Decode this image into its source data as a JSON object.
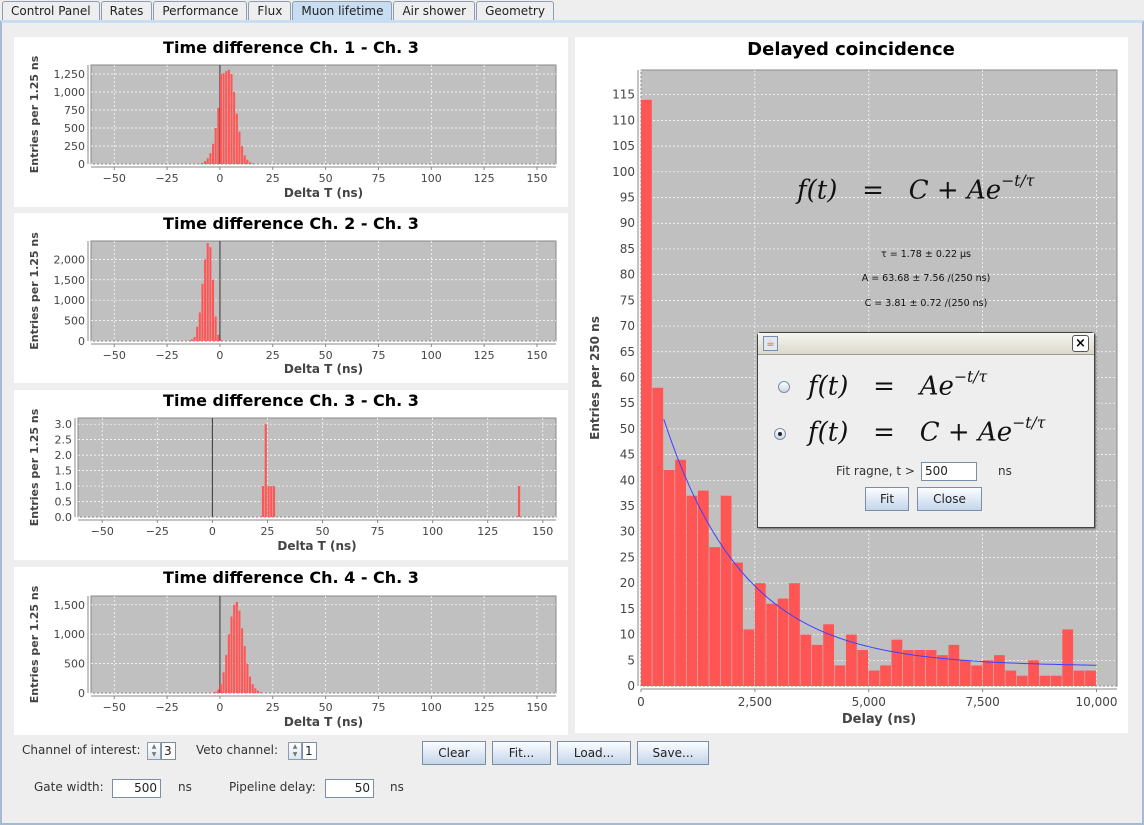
{
  "tabs": [
    "Control Panel",
    "Rates",
    "Performance",
    "Flux",
    "Muon lifetime",
    "Air shower",
    "Geometry"
  ],
  "active_tab": "Muon lifetime",
  "colors": {
    "bar": "#ff5555",
    "plot_bg": "#c0c0c0",
    "fit_line": "#4040ff",
    "grid": "#ffffff"
  },
  "chart_data": [
    {
      "type": "bar",
      "title": "Time difference Ch. 1 - Ch. 3",
      "xlabel": "Delta T (ns)",
      "ylabel": "Entries per 1.25 ns",
      "bin_width": 1.25,
      "xlim": [
        -61,
        159
      ],
      "xticks": [
        -50,
        -25,
        0,
        25,
        50,
        75,
        100,
        125,
        150
      ],
      "xticklabels": [
        "−50",
        "−25",
        "0",
        "25",
        "50",
        "75",
        "100",
        "125",
        "150"
      ],
      "ylim": [
        0,
        1375
      ],
      "yticks": [
        0,
        250,
        500,
        750,
        1000,
        1250
      ],
      "yticklabels": [
        "0",
        "250",
        "500",
        "750",
        "1,000",
        "1,250"
      ],
      "x": [
        -10,
        -8.75,
        -7.5,
        -6.25,
        -5,
        -3.75,
        -2.5,
        -1.25,
        0,
        1.25,
        2.5,
        3.75,
        5,
        6.25,
        7.5,
        8.75,
        10,
        11.25,
        12.5,
        13.75,
        15
      ],
      "values": [
        5,
        15,
        40,
        80,
        150,
        280,
        500,
        780,
        1250,
        1260,
        1290,
        1310,
        1250,
        1000,
        700,
        450,
        250,
        120,
        60,
        25,
        10
      ]
    },
    {
      "type": "bar",
      "title": "Time difference Ch. 2 - Ch. 3",
      "xlabel": "Delta T (ns)",
      "ylabel": "Entries per 1.25 ns",
      "bin_width": 1.25,
      "xlim": [
        -61,
        159
      ],
      "xticks": [
        -50,
        -25,
        0,
        25,
        50,
        75,
        100,
        125,
        150
      ],
      "xticklabels": [
        "−50",
        "−25",
        "0",
        "25",
        "50",
        "75",
        "100",
        "125",
        "150"
      ],
      "ylim": [
        0,
        2450
      ],
      "yticks": [
        0,
        500,
        1000,
        1500,
        2000
      ],
      "yticklabels": [
        "0",
        "500",
        "1,000",
        "1,500",
        "2,000"
      ],
      "x": [
        -15,
        -13.75,
        -12.5,
        -11.25,
        -10,
        -8.75,
        -7.5,
        -6.25,
        -5,
        -3.75,
        -2.5,
        -1.25,
        0
      ],
      "values": [
        10,
        40,
        100,
        350,
        700,
        1400,
        2000,
        2400,
        2300,
        1500,
        600,
        150,
        30
      ]
    },
    {
      "type": "bar",
      "title": "Time difference Ch. 3 - Ch. 3",
      "xlabel": "Delta T (ns)",
      "ylabel": "Entries per 1.25 ns",
      "bin_width": 1.25,
      "xlim": [
        -61,
        156
      ],
      "xticks": [
        -50,
        -25,
        0,
        25,
        50,
        75,
        100,
        125,
        150
      ],
      "xticklabels": [
        "−50",
        "−25",
        "0",
        "25",
        "50",
        "75",
        "100",
        "125",
        "150"
      ],
      "ylim": [
        0,
        3.2
      ],
      "yticks": [
        0,
        0.5,
        1,
        1.5,
        2,
        2.5,
        3
      ],
      "yticklabels": [
        "0.0",
        "0.5",
        "1.0",
        "1.5",
        "2.0",
        "2.5",
        "3.0"
      ],
      "x": [
        22.5,
        23.75,
        25,
        26.25,
        27.5,
        138.75
      ],
      "values": [
        1,
        3,
        1,
        1,
        1,
        1
      ]
    },
    {
      "type": "bar",
      "title": "Time difference Ch. 4 - Ch. 3",
      "xlabel": "Delta T (ns)",
      "ylabel": "Entries per 1.25 ns",
      "bin_width": 1.25,
      "xlim": [
        -61,
        159
      ],
      "xticks": [
        -50,
        -25,
        0,
        25,
        50,
        75,
        100,
        125,
        150
      ],
      "xticklabels": [
        "−50",
        "−25",
        "0",
        "25",
        "50",
        "75",
        "100",
        "125",
        "150"
      ],
      "ylim": [
        0,
        1650
      ],
      "yticks": [
        0,
        500,
        1000,
        1500
      ],
      "yticklabels": [
        "0",
        "500",
        "1,000",
        "1,500"
      ],
      "x": [
        -2.5,
        -1.25,
        0,
        1.25,
        2.5,
        3.75,
        5,
        6.25,
        7.5,
        8.75,
        10,
        11.25,
        12.5,
        13.75,
        15,
        16.25,
        17.5,
        18.75
      ],
      "values": [
        20,
        60,
        150,
        350,
        650,
        1000,
        1300,
        1500,
        1550,
        1400,
        1100,
        800,
        500,
        280,
        150,
        80,
        40,
        15
      ]
    },
    {
      "type": "bar",
      "title": "Delayed coincidence",
      "xlabel": "Delay  (ns)",
      "ylabel": "Entries per 250 ns",
      "bin_width": 250,
      "xlim": [
        0,
        10450
      ],
      "xticks": [
        0,
        2500,
        5000,
        7500,
        10000
      ],
      "xticklabels": [
        "0",
        "2,500",
        "5,000",
        "7,500",
        "10,000"
      ],
      "ylim": [
        0,
        119.8
      ],
      "yticks": [
        0,
        5,
        10,
        15,
        20,
        25,
        30,
        35,
        40,
        45,
        50,
        55,
        60,
        65,
        70,
        75,
        80,
        85,
        90,
        95,
        100,
        105,
        110,
        115
      ],
      "values": [
        114,
        58,
        42,
        44,
        37,
        38,
        27,
        37,
        24,
        11,
        20,
        16,
        17,
        20,
        10,
        8,
        12,
        4,
        10,
        7,
        3,
        4,
        9,
        7,
        7,
        7,
        6,
        8,
        5,
        4,
        5,
        6,
        3,
        2,
        5,
        2,
        2,
        11,
        3,
        3
      ],
      "fit": {
        "C": 3.81,
        "A": 63.68,
        "tau_us": 1.78,
        "t_min_ns": 500,
        "t_max_ns": 10000
      }
    }
  ],
  "formula": {
    "lhs": "f(t)",
    "eq": "=",
    "rhs_c": "C + Ae",
    "rhs_a": "Ae",
    "exp": "−t/τ"
  },
  "fit_results": {
    "tau": "τ = 1.78 ± 0.22 µs",
    "A": "A = 63.68 ± 7.56 /(250 ns)",
    "C": "C = 3.81 ± 0.72 /(250 ns)"
  },
  "dialog": {
    "icon": "java-icon",
    "close": "×",
    "range_label": "Fit ragne, t >",
    "range_value": "500",
    "range_unit": "ns",
    "fit": "Fit",
    "close_btn": "Close"
  },
  "controls": {
    "channel_label": "Channel of interest:",
    "channel_value": "3",
    "veto_label": "Veto channel:",
    "veto_value": "1",
    "gate_label": "Gate width:",
    "gate_value": "500",
    "gate_unit": "ns",
    "pipeline_label": "Pipeline delay:",
    "pipeline_value": "50",
    "pipeline_unit": "ns",
    "clear": "Clear",
    "fit": "Fit...",
    "load": "Load...",
    "save": "Save..."
  }
}
